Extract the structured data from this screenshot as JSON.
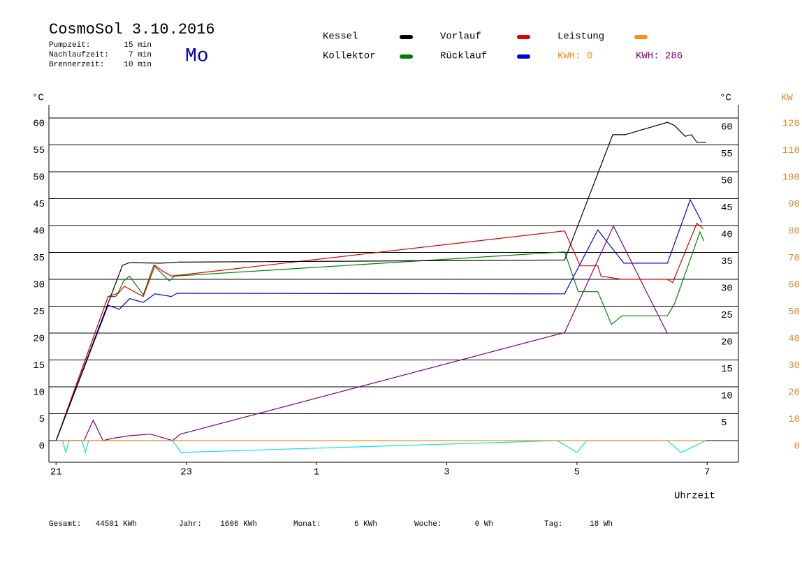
{
  "header": {
    "title": "CosmoSol 3.10.2016",
    "day": "Mo",
    "info": [
      {
        "label": "Pumpzeit:",
        "value": "15 min"
      },
      {
        "label": "Nachlaufzeit:",
        "value": "7 min"
      },
      {
        "label": "Brennerzeit:",
        "value": "10 min"
      }
    ]
  },
  "chart_data": {
    "type": "line",
    "xlabel": "Uhrzeit",
    "ylabel": "°C",
    "ylabel_right": "°C",
    "y2label": "KW",
    "xlim": [
      20.89,
      31.48
    ],
    "ylim": [
      -4.03,
      62.47
    ],
    "y2lim": [
      -8.06,
      124.94
    ],
    "xticks": [
      21,
      23,
      {
        "value": 25,
        "label": "1"
      },
      {
        "value": 27,
        "label": "3"
      },
      {
        "value": 29,
        "label": "5"
      },
      {
        "value": 31,
        "label": "7"
      }
    ],
    "yticks": [
      0,
      5,
      10,
      15,
      20,
      25,
      30,
      35,
      40,
      45,
      50,
      55,
      60
    ],
    "yticks_right": [
      5,
      10,
      15,
      20,
      25,
      30,
      35,
      40,
      45,
      50,
      55,
      60
    ],
    "y2ticks": [
      0,
      10,
      20,
      30,
      40,
      50,
      60,
      70,
      80,
      90,
      100,
      110,
      120
    ],
    "grid": true,
    "series": [
      {
        "name": "Kessel",
        "color": "#000000",
        "x": [
          21,
          22.02,
          22.13,
          22.61,
          22.88,
          28.81,
          29.55,
          29.74,
          30.39,
          30.5,
          30.66,
          30.76,
          30.84,
          30.98
        ],
        "values": [
          0,
          32.6,
          33.1,
          33,
          33.2,
          33.6,
          56.9,
          56.9,
          59.2,
          58.6,
          56.6,
          56.9,
          55.5,
          55.5
        ]
      },
      {
        "name": "Vorlauf",
        "color": "#e00000",
        "x": [
          21,
          21.8,
          21.91,
          22.05,
          22.34,
          22.52,
          22.63,
          22.77,
          28.81,
          29.05,
          29.32,
          29.37,
          29.69,
          30.39,
          30.47,
          30.84,
          30.94
        ],
        "values": [
          0,
          26.8,
          26.8,
          28.7,
          26.8,
          32.6,
          31.6,
          30.6,
          39,
          32.5,
          32.5,
          30.6,
          30,
          30,
          29.4,
          40.4,
          39.4
        ]
      },
      {
        "name": "Leistung",
        "color": "#ff8c1a",
        "x": [
          21,
          30.98
        ],
        "values": [
          0,
          0
        ]
      },
      {
        "name": "Kollektor",
        "color": "#008000",
        "x": [
          21,
          21.8,
          21.95,
          22.04,
          22.13,
          22.34,
          22.5,
          22.74,
          22.82,
          28.81,
          29.02,
          29.32,
          29.53,
          29.69,
          30.39,
          30.5,
          30.89,
          30.95
        ],
        "values": [
          0,
          26.8,
          27.4,
          29.7,
          30.6,
          27.1,
          32.6,
          29.7,
          30.6,
          35.1,
          27.7,
          27.7,
          21.6,
          23.2,
          23.2,
          25.5,
          38.8,
          37.1
        ]
      },
      {
        "name": "Rücklauf",
        "color": "#0000e0",
        "x": [
          21,
          21.8,
          21.97,
          22.13,
          22.34,
          22.52,
          22.77,
          22.86,
          28.81,
          29.32,
          29.72,
          30.39,
          30.74,
          30.92
        ],
        "values": [
          0,
          25.2,
          24.4,
          26.4,
          25.7,
          27.3,
          26.8,
          27.4,
          27.3,
          39.2,
          33,
          33,
          44.8,
          40.6
        ]
      },
      {
        "color": "#800080",
        "x": [
          21,
          21.43,
          21.57,
          21.72,
          21.86,
          22.13,
          22.45,
          22.79,
          22.91,
          28.81,
          29.56,
          30.39
        ],
        "values": [
          0,
          0,
          3.8,
          0,
          0.4,
          0.9,
          1.2,
          0,
          1.2,
          20.1,
          39.9,
          19.9
        ]
      },
      {
        "color": "#00e5e5",
        "x": [
          21,
          21.1,
          21.15,
          21.2,
          21.4,
          21.45,
          21.5,
          22.79,
          22.92,
          28.7,
          29.0,
          29.15,
          30.39,
          30.6,
          30.98
        ],
        "values": [
          0,
          0,
          -2.2,
          0,
          0,
          -2.2,
          0,
          0,
          -2.2,
          0,
          -2.2,
          0,
          0,
          -2.2,
          0
        ]
      }
    ],
    "annotations": [
      {
        "text": "KWH: 0",
        "color": "#ff8c1a"
      },
      {
        "text": "KWH: 286",
        "color": "#800080"
      }
    ]
  },
  "footer": [
    {
      "label": "Gesamt:",
      "value": "44501 KWh"
    },
    {
      "label": "Jahr:",
      "value": "1606 KWh"
    },
    {
      "label": "Monat:",
      "value": "6 KWh"
    },
    {
      "label": "Woche:",
      "value": "0 Wh"
    },
    {
      "label": "Tag:",
      "value": "18 Wh"
    }
  ]
}
